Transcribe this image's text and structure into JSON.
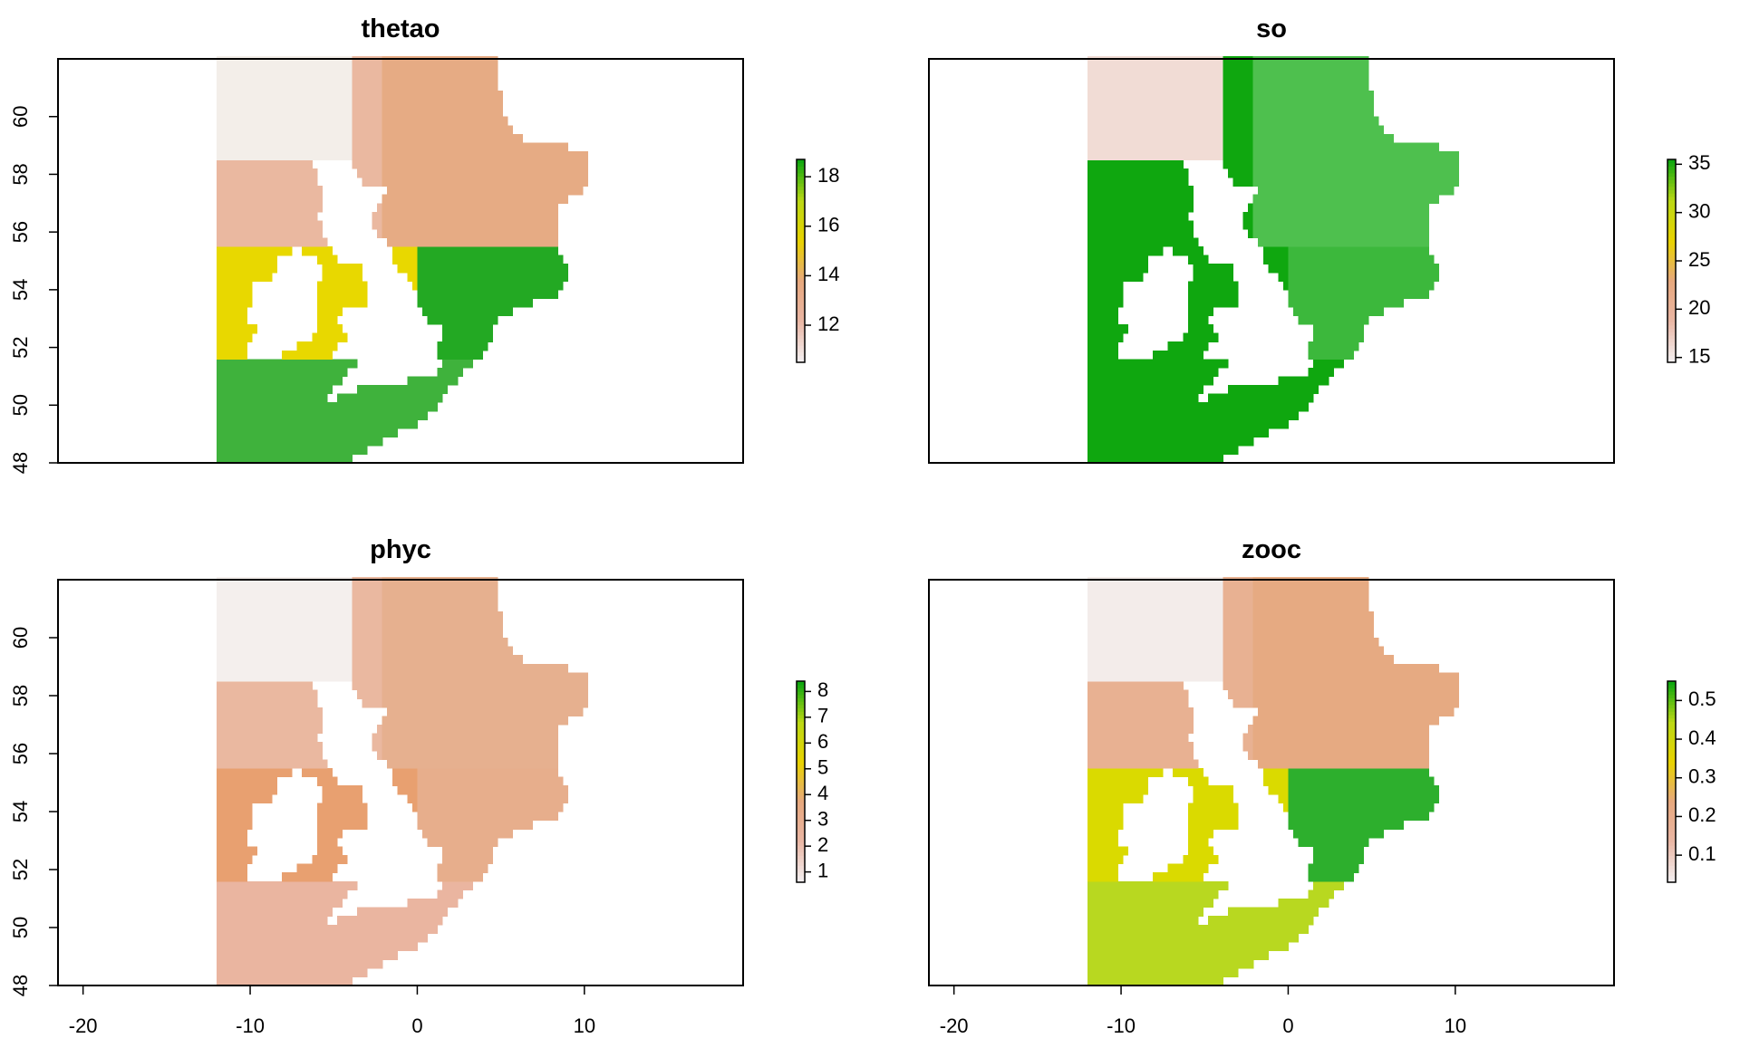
{
  "figure": {
    "panels": [
      {
        "title": "thetao",
        "show_y_axis": true,
        "show_x_axis": false,
        "legend": {
          "ticks": [
            "12",
            "14",
            "16",
            "18"
          ],
          "tick_values": [
            12,
            14,
            16,
            18
          ],
          "range": [
            10.5,
            18.7
          ]
        },
        "colors": {
          "north": "#eab8a0",
          "northeast": "#e6ab84",
          "mid": "#e8d800",
          "south": "#3fb23c",
          "east": "#23a923",
          "ice": "#f3eee9"
        }
      },
      {
        "title": "so",
        "show_y_axis": false,
        "show_x_axis": false,
        "legend": {
          "ticks": [
            "15",
            "20",
            "25",
            "30",
            "35"
          ],
          "tick_values": [
            15,
            20,
            25,
            30,
            35
          ],
          "range": [
            14.5,
            35.5
          ]
        },
        "colors": {
          "north": "#0fa70f",
          "northeast": "#4ec04e",
          "mid": "#0fa70f",
          "south": "#0fa70f",
          "east": "#3cb83c",
          "ice": "#f1dcd5"
        }
      },
      {
        "title": "phyc",
        "show_y_axis": true,
        "show_x_axis": true,
        "legend": {
          "ticks": [
            "1",
            "2",
            "3",
            "4",
            "5",
            "6",
            "7",
            "8"
          ],
          "tick_values": [
            1,
            2,
            3,
            4,
            5,
            6,
            7,
            8
          ],
          "range": [
            0.6,
            8.4
          ]
        },
        "colors": {
          "north": "#eab8a0",
          "northeast": "#e6b08f",
          "mid": "#e8a070",
          "south": "#eab5a0",
          "east": "#e7ae8c",
          "ice": "#f4efed"
        }
      },
      {
        "title": "zooc",
        "show_y_axis": false,
        "show_x_axis": true,
        "legend": {
          "ticks": [
            "0.1",
            "0.2",
            "0.3",
            "0.4",
            "0.5"
          ],
          "tick_values": [
            0.1,
            0.2,
            0.3,
            0.4,
            0.5
          ],
          "range": [
            0.03,
            0.55
          ]
        },
        "colors": {
          "north": "#e8b192",
          "northeast": "#e6aa82",
          "mid": "#dada00",
          "south": "#b8d820",
          "east": "#2daf2d",
          "ice": "#f3ecea"
        }
      }
    ],
    "x_axis": {
      "ticks": [
        "-20",
        "-10",
        "0",
        "10"
      ],
      "tick_values": [
        -20,
        -10,
        0,
        10
      ],
      "range": [
        -21.5,
        19.5
      ]
    },
    "y_axis": {
      "ticks": [
        "48",
        "50",
        "52",
        "54",
        "56",
        "58",
        "60"
      ],
      "tick_values": [
        48,
        50,
        52,
        54,
        56,
        58,
        60
      ],
      "range": [
        48,
        62
      ]
    },
    "data_extent": {
      "lon": [
        -12,
        10
      ],
      "lat": [
        48,
        62
      ]
    },
    "palette": [
      "#f3eeef",
      "#e9b6a4",
      "#e7a87e",
      "#e8d200",
      "#bcd815",
      "#0fa70f"
    ]
  }
}
